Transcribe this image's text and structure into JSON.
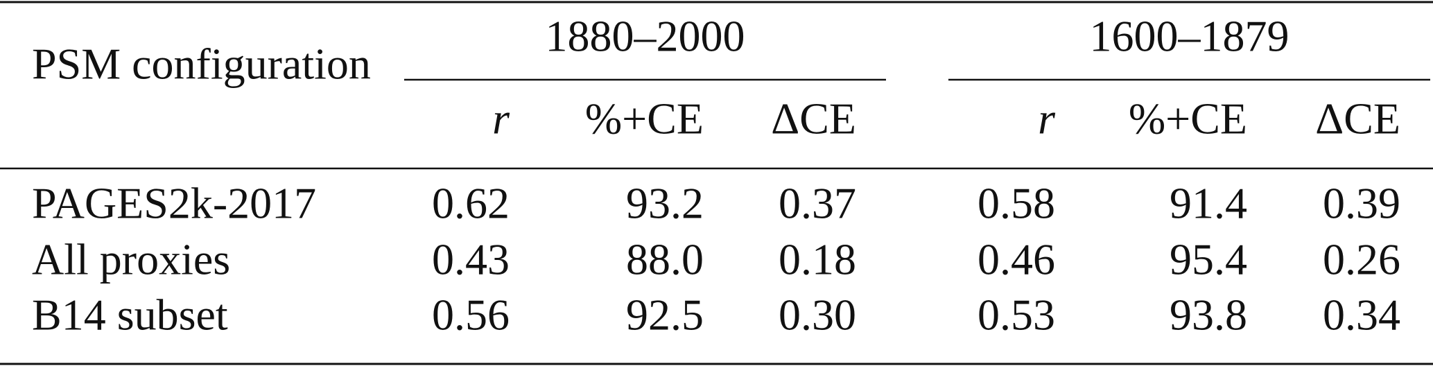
{
  "table": {
    "label_header": "PSM configuration",
    "groups": [
      {
        "label": "1880–2000",
        "columns": [
          "r",
          "%+CE",
          "ΔCE"
        ]
      },
      {
        "label": "1600–1879",
        "columns": [
          "r",
          "%+CE",
          "ΔCE"
        ]
      }
    ],
    "rows": [
      {
        "label": "PAGES2k-2017",
        "values": [
          "0.62",
          "93.2",
          "0.37",
          "0.58",
          "91.4",
          "0.39"
        ]
      },
      {
        "label": "All proxies",
        "values": [
          "0.43",
          "88.0",
          "0.18",
          "0.46",
          "95.4",
          "0.26"
        ]
      },
      {
        "label": "B14 subset",
        "values": [
          "0.56",
          "92.5",
          "0.30",
          "0.53",
          "93.8",
          "0.34"
        ]
      }
    ]
  }
}
